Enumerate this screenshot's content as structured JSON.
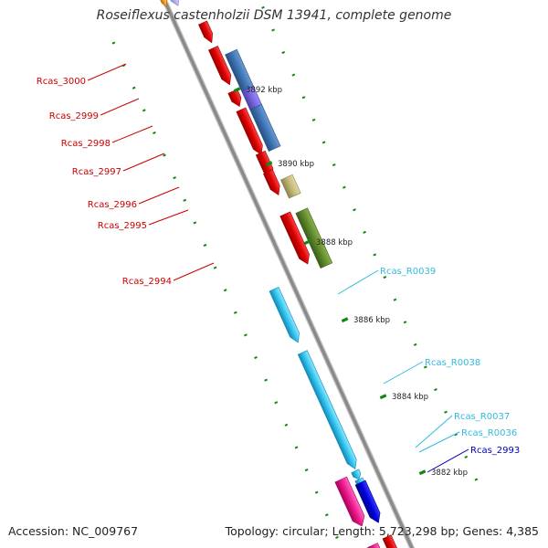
{
  "title": "Roseiflexus castenholzii DSM 13941, complete genome",
  "footer": {
    "accession": "Accession: NC_009767",
    "summary": "Topology: circular; Length: 5,723,298 bp; Genes: 4,385"
  },
  "colors": {
    "backbone": "#8a8a8a",
    "tick": "#118811",
    "label_red": "#cc0000",
    "label_cyan": "#33bbdd",
    "label_blue": "#0000bb"
  },
  "scale_labels": [
    "3892 kbp",
    "3890 kbp",
    "3888 kbp",
    "3886 kbp",
    "3884 kbp",
    "3882 kbp"
  ],
  "gene_labels": [
    {
      "text": "Rcas_3000",
      "color": "red"
    },
    {
      "text": "Rcas_2999",
      "color": "red"
    },
    {
      "text": "Rcas_2998",
      "color": "red"
    },
    {
      "text": "Rcas_2997",
      "color": "red"
    },
    {
      "text": "Rcas_2996",
      "color": "red"
    },
    {
      "text": "Rcas_2995",
      "color": "red"
    },
    {
      "text": "Rcas_2994",
      "color": "red"
    },
    {
      "text": "Rcas_R0039",
      "color": "cyan"
    },
    {
      "text": "Rcas_R0038",
      "color": "cyan"
    },
    {
      "text": "Rcas_R0037",
      "color": "cyan"
    },
    {
      "text": "Rcas_R0036",
      "color": "cyan"
    },
    {
      "text": "Rcas_2993",
      "color": "blue"
    }
  ]
}
